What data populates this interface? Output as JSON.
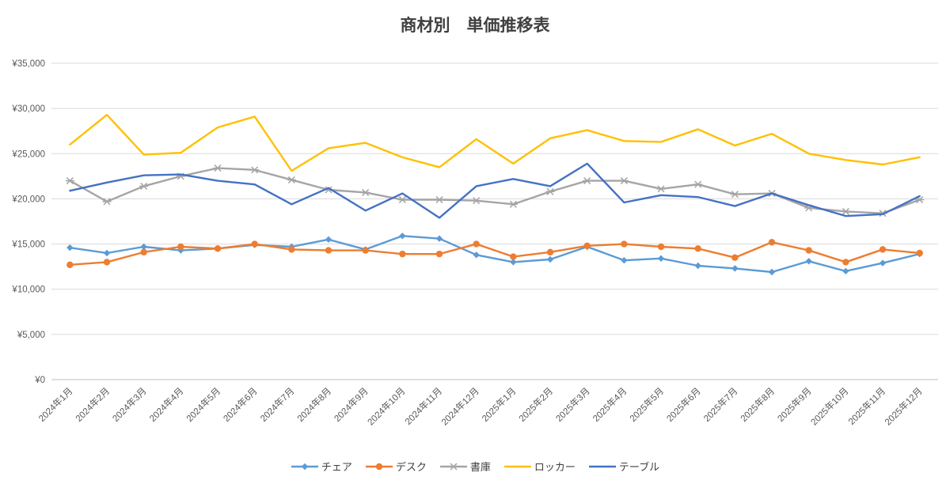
{
  "chart_data": {
    "type": "line",
    "title": "商材別　単価推移表",
    "categories": [
      "2024年1月",
      "2024年2月",
      "2024年3月",
      "2024年4月",
      "2024年5月",
      "2024年6月",
      "2024年7月",
      "2024年8月",
      "2024年9月",
      "2024年10月",
      "2024年11月",
      "2024年12月",
      "2025年1月",
      "2025年2月",
      "2025年3月",
      "2025年4月",
      "2025年5月",
      "2025年6月",
      "2025年7月",
      "2025年8月",
      "2025年9月",
      "2025年10月",
      "2025年11月",
      "2025年12月"
    ],
    "ylim": [
      0,
      35000
    ],
    "y_tick_step": 5000,
    "y_tick_labels": [
      "¥0",
      "¥5,000",
      "¥10,000",
      "¥15,000",
      "¥20,000",
      "¥25,000",
      "¥30,000",
      "¥35,000"
    ],
    "grid": true,
    "legend_position": "bottom",
    "series": [
      {
        "id": "chair",
        "name": "チェア",
        "color": "#5B9BD5",
        "marker": "diamond",
        "values": [
          14600,
          14000,
          14700,
          14300,
          14500,
          14900,
          14700,
          15500,
          14400,
          15900,
          15600,
          13800,
          13000,
          13300,
          14700,
          13200,
          13400,
          12600,
          12300,
          11900,
          13100,
          12000,
          12900,
          13900
        ]
      },
      {
        "id": "desk",
        "name": "デスク",
        "color": "#ED7D31",
        "marker": "circle",
        "values": [
          12700,
          13000,
          14100,
          14700,
          14500,
          15000,
          14400,
          14300,
          14300,
          13900,
          13900,
          15000,
          13600,
          14100,
          14800,
          15000,
          14700,
          14500,
          13500,
          15200,
          14300,
          13000,
          14400,
          14000
        ]
      },
      {
        "id": "shoko",
        "name": "書庫",
        "color": "#A5A5A5",
        "marker": "x",
        "values": [
          22000,
          19700,
          21400,
          22500,
          23400,
          23200,
          22100,
          21000,
          20700,
          19900,
          19900,
          19800,
          19400,
          20800,
          22000,
          22000,
          21100,
          21600,
          20500,
          20600,
          19000,
          18600,
          18400,
          19900
        ]
      },
      {
        "id": "locker",
        "name": "ロッカー",
        "color": "#FFC000",
        "marker": "none",
        "values": [
          26000,
          29300,
          24900,
          25100,
          27900,
          29100,
          23100,
          25600,
          26200,
          24600,
          23500,
          26600,
          23900,
          26700,
          27600,
          26400,
          26300,
          27700,
          25900,
          27200,
          25000,
          24300,
          23800,
          24600
        ]
      },
      {
        "id": "table",
        "name": "テーブル",
        "color": "#4472C4",
        "marker": "none",
        "values": [
          20900,
          21800,
          22600,
          22700,
          22000,
          21600,
          19400,
          21200,
          18700,
          20600,
          17900,
          21400,
          22200,
          21400,
          23900,
          19600,
          20400,
          20200,
          19200,
          20600,
          19300,
          18100,
          18300,
          20300
        ]
      }
    ]
  }
}
